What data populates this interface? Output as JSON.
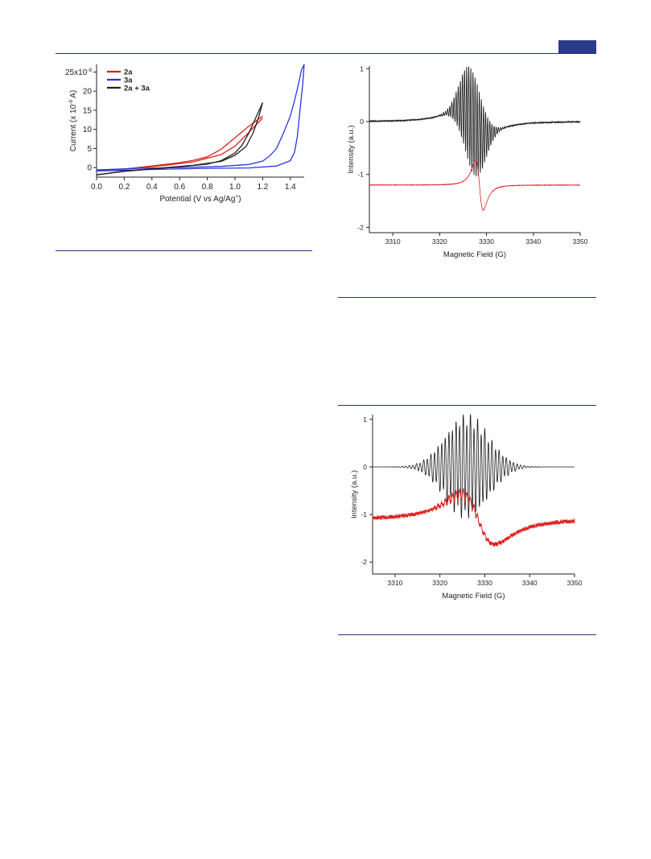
{
  "chart_data": [
    {
      "type": "line",
      "xlabel": "Potential (V vs Ag/Ag",
      "xlabel_sup": "+",
      "xlabel_end": ")",
      "ylabel": "Current (x 10",
      "ylabel_sup": "-9",
      "ylabel_end": " A)",
      "x_ticks": [
        "0.0",
        "0.2",
        "0.4",
        "0.6",
        "0.8",
        "1.0",
        "1.2",
        "1.4"
      ],
      "y_ticks": [
        "0",
        "5",
        "10",
        "15",
        "20",
        "25x10"
      ],
      "y_top_sup": "-9",
      "xlim": [
        0,
        1.5
      ],
      "ylim": [
        -2.5,
        27
      ],
      "legend_position": "top-left",
      "series": [
        {
          "name": "2a",
          "color": "#e02020",
          "forward": [
            [
              0,
              -0.9
            ],
            [
              0.2,
              -0.4
            ],
            [
              0.4,
              0.4
            ],
            [
              0.6,
              1.3
            ],
            [
              0.7,
              1.9
            ],
            [
              0.8,
              2.8
            ],
            [
              0.9,
              4.8
            ],
            [
              1.0,
              7.8
            ],
            [
              1.1,
              10.8
            ],
            [
              1.2,
              13.5
            ]
          ],
          "reverse": [
            [
              1.2,
              13.0
            ],
            [
              1.1,
              9.2
            ],
            [
              1.0,
              5.6
            ],
            [
              0.9,
              3.4
            ],
            [
              0.7,
              1.5
            ],
            [
              0.5,
              0.6
            ],
            [
              0.3,
              -0.1
            ],
            [
              0.1,
              -0.6
            ],
            [
              0,
              -0.9
            ]
          ]
        },
        {
          "name": "3a",
          "color": "#2838e0",
          "forward": [
            [
              0,
              -0.6
            ],
            [
              0.3,
              -0.2
            ],
            [
              0.6,
              0
            ],
            [
              0.9,
              0.3
            ],
            [
              1.1,
              0.8
            ],
            [
              1.2,
              1.7
            ],
            [
              1.25,
              3.0
            ],
            [
              1.3,
              5.0
            ],
            [
              1.35,
              9.0
            ],
            [
              1.4,
              13.5
            ],
            [
              1.43,
              17.5
            ],
            [
              1.46,
              22
            ],
            [
              1.48,
              25.5
            ],
            [
              1.5,
              27
            ]
          ],
          "reverse": [
            [
              1.5,
              27
            ],
            [
              1.49,
              22
            ],
            [
              1.47,
              15
            ],
            [
              1.45,
              8
            ],
            [
              1.43,
              4
            ],
            [
              1.4,
              1.8
            ],
            [
              1.3,
              0.4
            ],
            [
              1.1,
              -0.1
            ],
            [
              0.8,
              -0.2
            ],
            [
              0.4,
              -0.5
            ],
            [
              0,
              -0.9
            ]
          ]
        },
        {
          "name": "2a + 3a",
          "color": "#222222",
          "forward": [
            [
              0,
              -1.9
            ],
            [
              0.2,
              -1.0
            ],
            [
              0.4,
              -0.4
            ],
            [
              0.6,
              0.2
            ],
            [
              0.8,
              0.9
            ],
            [
              0.9,
              1.8
            ],
            [
              1.0,
              3.8
            ],
            [
              1.05,
              5.8
            ],
            [
              1.1,
              9.0
            ],
            [
              1.15,
              13.0
            ],
            [
              1.2,
              17.0
            ]
          ],
          "reverse": [
            [
              1.2,
              17.0
            ],
            [
              1.17,
              13.0
            ],
            [
              1.13,
              9.0
            ],
            [
              1.08,
              5.5
            ],
            [
              1.0,
              3.2
            ],
            [
              0.9,
              1.6
            ],
            [
              0.7,
              0.6
            ],
            [
              0.4,
              -0.3
            ],
            [
              0.2,
              -0.9
            ],
            [
              0,
              -1.9
            ]
          ]
        }
      ]
    },
    {
      "type": "line",
      "xlabel": "Magnetic Field (G)",
      "ylabel": "Intensity (a.u.)",
      "x_ticks": [
        "3310",
        "3320",
        "3330",
        "3340",
        "3350"
      ],
      "y_ticks": [
        "1",
        "0",
        "-1",
        "-2"
      ],
      "xlim": [
        3305,
        3350
      ],
      "ylim": [
        -2.1,
        1.05
      ],
      "series": [
        {
          "color": "#1a1a1a",
          "baseline": 0,
          "center": 3327,
          "amplitude": 0.97,
          "line_spacing": 0.45,
          "width": 3.2
        },
        {
          "color": "#e02020",
          "baseline": -1.2,
          "center": 3328.5,
          "amplitude": 0.95,
          "width": 1.4
        }
      ]
    },
    {
      "type": "line",
      "xlabel": "Magnetic Field (G)",
      "ylabel": "Intensity (a.u.)",
      "x_ticks": [
        "3310",
        "3320",
        "3330",
        "3340",
        "3350"
      ],
      "y_ticks": [
        "1",
        "0",
        "-1",
        "-2"
      ],
      "xlim": [
        3305,
        3350
      ],
      "ylim": [
        -2.25,
        1.1
      ],
      "series": [
        {
          "color": "#1a1a1a",
          "baseline": 0,
          "center": 3325,
          "amplitude": 1.0,
          "line_spacing": 0.8,
          "width": 4.5
        },
        {
          "color": "#e02020",
          "baseline": -1.1,
          "center": 3328.5,
          "amplitude": 1.05,
          "width": 6.5
        }
      ]
    }
  ]
}
